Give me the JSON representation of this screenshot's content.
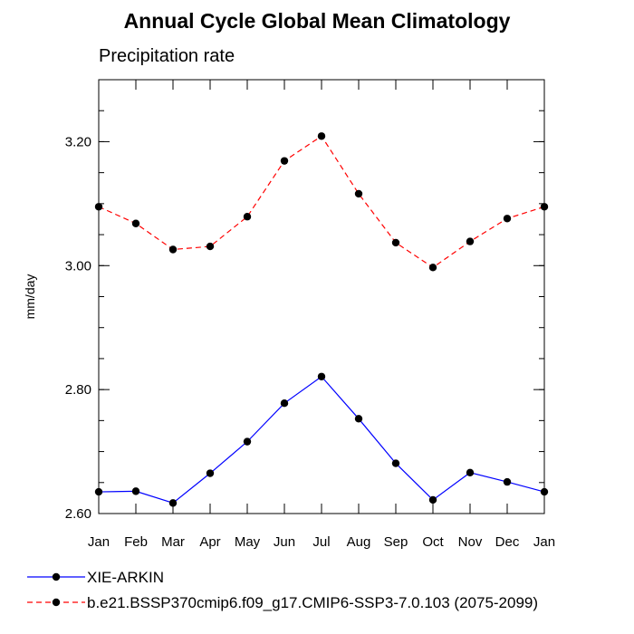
{
  "chart_data": {
    "type": "line",
    "title": "Annual Cycle Global Mean Climatology",
    "subtitle": "Precipitation rate",
    "xlabel": "",
    "ylabel": "mm/day",
    "categories": [
      "Jan",
      "Feb",
      "Mar",
      "Apr",
      "May",
      "Jun",
      "Jul",
      "Aug",
      "Sep",
      "Oct",
      "Nov",
      "Dec",
      "Jan"
    ],
    "ylim": [
      2.6,
      3.3
    ],
    "yticks": [
      2.6,
      2.8,
      3.0,
      3.2
    ],
    "ytick_labels": [
      "2.60",
      "2.80",
      "3.00",
      "3.20"
    ],
    "grid": false,
    "legend_position": "bottom",
    "series": [
      {
        "name": "XIE-ARKIN",
        "color": "#0000ff",
        "line_style": "solid",
        "marker": "filled-circle",
        "values": [
          2.635,
          2.636,
          2.617,
          2.665,
          2.716,
          2.778,
          2.821,
          2.753,
          2.681,
          2.622,
          2.666,
          2.651,
          2.635
        ]
      },
      {
        "name": "b.e21.BSSP370cmip6.f09_g17.CMIP6-SSP3-7.0.103 (2075-2099)",
        "color": "#ff0000",
        "line_style": "dashed",
        "marker": "filled-circle",
        "values": [
          3.095,
          3.068,
          3.026,
          3.031,
          3.079,
          3.169,
          3.209,
          3.116,
          3.037,
          2.997,
          3.039,
          3.076,
          3.095
        ]
      }
    ]
  }
}
